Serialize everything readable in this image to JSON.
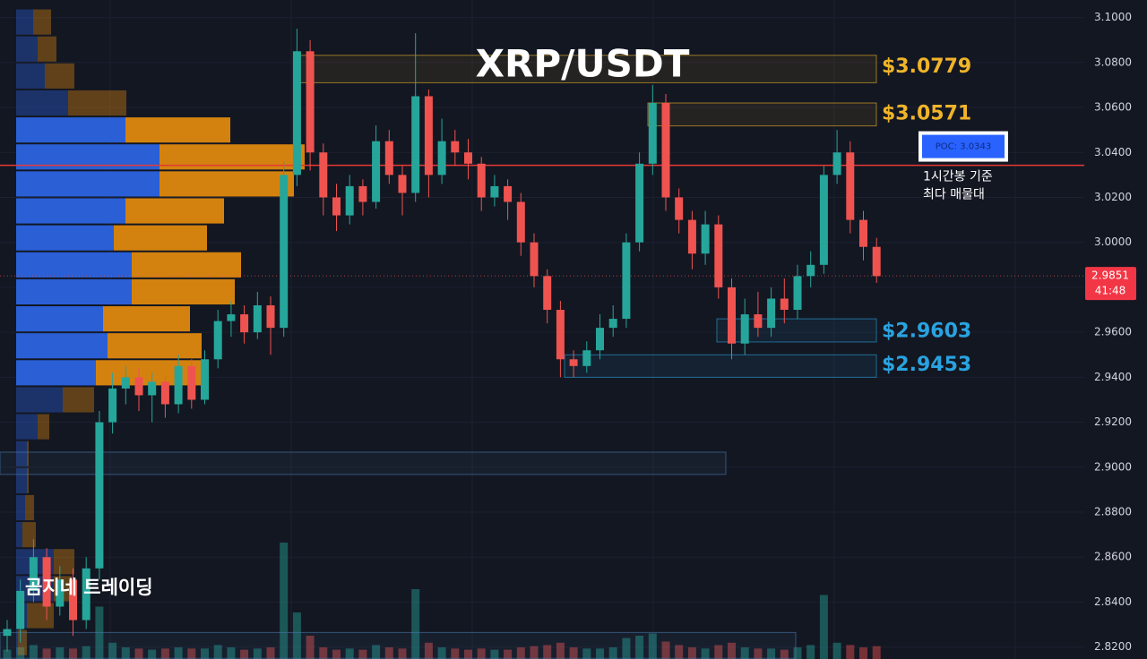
{
  "chart_data": {
    "type": "candlestick",
    "title": "XRP/USDT",
    "watermark": "곰지네 트레이딩",
    "ylim": [
      2.8147,
      3.1078
    ],
    "yticks": [
      {
        "value": 3.1,
        "label": "3.1000"
      },
      {
        "value": 3.08,
        "label": "3.0800"
      },
      {
        "value": 3.06,
        "label": "3.0600"
      },
      {
        "value": 3.04,
        "label": "3.0400"
      },
      {
        "value": 3.02,
        "label": "3.0200"
      },
      {
        "value": 3.0,
        "label": "3.0000"
      },
      {
        "value": 2.98,
        "label": "2.9800"
      },
      {
        "value": 2.96,
        "label": "2.9600"
      },
      {
        "value": 2.94,
        "label": "2.9400"
      },
      {
        "value": 2.92,
        "label": "2.9200"
      },
      {
        "value": 2.9,
        "label": "2.9000"
      },
      {
        "value": 2.88,
        "label": "2.8800"
      },
      {
        "value": 2.86,
        "label": "2.8600"
      },
      {
        "value": 2.84,
        "label": "2.8400"
      },
      {
        "value": 2.82,
        "label": "2.8200"
      }
    ],
    "up_color": "#26a69a",
    "down_color": "#ef5350",
    "open": [
      2.825,
      2.828,
      2.845,
      2.86,
      2.838,
      2.85,
      2.832,
      2.855,
      2.92,
      2.935,
      2.94,
      2.932,
      2.938,
      2.928,
      2.945,
      2.93,
      2.948,
      2.965,
      2.968,
      2.96,
      2.972,
      2.962,
      3.03,
      3.085,
      3.04,
      3.02,
      3.012,
      3.025,
      3.018,
      3.045,
      3.03,
      3.022,
      3.065,
      3.03,
      3.045,
      3.04,
      3.035,
      3.02,
      3.025,
      3.018,
      3.0,
      2.985,
      2.97,
      2.948,
      2.945,
      2.952,
      2.962,
      2.966,
      3.0,
      3.035,
      3.062,
      3.02,
      3.01,
      2.995,
      3.008,
      2.98,
      2.955,
      2.968,
      2.962,
      2.975,
      2.97,
      2.985,
      2.99,
      3.03,
      3.04,
      3.01,
      2.998
    ],
    "high": [
      2.832,
      2.85,
      2.868,
      2.864,
      2.856,
      2.855,
      2.86,
      2.925,
      2.942,
      2.945,
      2.944,
      2.942,
      2.941,
      2.95,
      2.948,
      2.952,
      2.97,
      2.974,
      2.972,
      2.978,
      2.976,
      3.036,
      3.095,
      3.09,
      3.044,
      3.026,
      3.03,
      3.028,
      3.052,
      3.05,
      3.034,
      3.093,
      3.068,
      3.055,
      3.05,
      3.046,
      3.038,
      3.03,
      3.028,
      3.022,
      3.004,
      2.988,
      2.974,
      2.952,
      2.956,
      2.968,
      2.972,
      3.004,
      3.04,
      3.07,
      3.066,
      3.024,
      3.014,
      3.014,
      3.012,
      2.984,
      2.975,
      2.978,
      2.98,
      2.984,
      2.99,
      2.996,
      3.034,
      3.05,
      3.045,
      3.014,
      3.002
    ],
    "low": [
      2.818,
      2.822,
      2.84,
      2.832,
      2.834,
      2.825,
      2.828,
      2.85,
      2.915,
      2.928,
      2.925,
      2.92,
      2.922,
      2.924,
      2.926,
      2.928,
      2.944,
      2.958,
      2.955,
      2.957,
      2.95,
      2.958,
      3.025,
      3.032,
      3.012,
      3.005,
      3.008,
      3.012,
      3.015,
      3.026,
      3.012,
      3.018,
      3.02,
      3.026,
      3.034,
      3.028,
      3.014,
      3.016,
      3.01,
      2.994,
      2.98,
      2.964,
      2.94,
      2.94,
      2.942,
      2.948,
      2.958,
      2.962,
      2.996,
      3.03,
      3.014,
      3.004,
      2.988,
      2.99,
      2.975,
      2.948,
      2.95,
      2.958,
      2.958,
      2.964,
      2.966,
      2.98,
      2.986,
      3.026,
      3.004,
      2.992,
      2.982
    ],
    "close": [
      2.828,
      2.845,
      2.86,
      2.838,
      2.85,
      2.832,
      2.855,
      2.92,
      2.935,
      2.94,
      2.932,
      2.938,
      2.928,
      2.945,
      2.93,
      2.948,
      2.965,
      2.968,
      2.96,
      2.972,
      2.962,
      3.03,
      3.085,
      3.04,
      3.02,
      3.012,
      3.025,
      3.018,
      3.045,
      3.03,
      3.022,
      3.065,
      3.03,
      3.045,
      3.04,
      3.035,
      3.02,
      3.025,
      3.018,
      3.0,
      2.985,
      2.97,
      2.948,
      2.945,
      2.952,
      2.962,
      2.966,
      3.0,
      3.035,
      3.062,
      3.02,
      3.01,
      2.995,
      3.008,
      2.98,
      2.955,
      2.968,
      2.962,
      2.975,
      2.97,
      2.985,
      2.99,
      3.03,
      3.04,
      3.01,
      2.998,
      2.985
    ],
    "volume": [
      8,
      10,
      12,
      9,
      10,
      9,
      11,
      45,
      14,
      10,
      9,
      8,
      9,
      10,
      9,
      9,
      12,
      10,
      8,
      9,
      10,
      100,
      40,
      20,
      10,
      8,
      9,
      8,
      12,
      10,
      9,
      60,
      14,
      10,
      9,
      8,
      9,
      8,
      8,
      10,
      11,
      12,
      14,
      10,
      9,
      9,
      10,
      18,
      20,
      22,
      15,
      12,
      10,
      9,
      12,
      14,
      10,
      9,
      9,
      8,
      10,
      12,
      55,
      14,
      12,
      10,
      11
    ],
    "profile": {
      "bins": [
        3.104,
        3.092,
        3.08,
        3.068,
        3.056,
        3.044,
        3.032,
        3.02,
        3.008,
        2.996,
        2.984,
        2.972,
        2.96,
        2.948,
        2.936,
        2.924,
        2.912,
        2.9,
        2.888,
        2.876,
        2.864,
        2.852,
        2.84,
        2.828,
        2.816
      ],
      "buy": [
        19,
        24,
        32,
        58,
        122,
        160,
        160,
        122,
        109,
        129,
        129,
        97,
        102,
        89,
        52,
        24,
        12,
        12,
        10,
        7,
        42,
        42,
        12,
        2
      ],
      "sell": [
        20,
        21,
        33,
        65,
        117,
        162,
        150,
        110,
        104,
        122,
        115,
        97,
        105,
        124,
        35,
        13,
        2,
        2,
        10,
        15,
        23,
        20,
        30,
        10
      ],
      "buy_color": "#2a5fd6",
      "sell_color": "#d4820f",
      "value_area": [
        2.936,
        3.056
      ]
    },
    "zones": [
      {
        "value": 3.0779,
        "label": "$3.0779",
        "top": 3.0832,
        "bottom": 3.071,
        "color": "#f0b429"
      },
      {
        "value": 3.0571,
        "label": "$3.0571",
        "top": 3.062,
        "bottom": 3.0518,
        "color": "#f0b429"
      },
      {
        "value": 2.9603,
        "label": "$2.9603",
        "top": 2.966,
        "bottom": 2.9557,
        "color": "#29a3e0"
      },
      {
        "value": 2.9453,
        "label": "$2.9453",
        "top": 2.95,
        "bottom": 2.94,
        "color": "#29a3e0"
      },
      {
        "top": 2.9067,
        "bottom": 2.8968,
        "color": "#4a7bb0"
      },
      {
        "top": 2.8265,
        "bottom": 2.815,
        "color": "#4a7bb0"
      }
    ],
    "poc": {
      "value": 3.0343,
      "label": "POC: 3.0343",
      "note": [
        "1시간봉 기준",
        "최다 매물대"
      ],
      "color": "#e53935"
    },
    "last_price": 2.9851,
    "countdown": "41:48"
  }
}
